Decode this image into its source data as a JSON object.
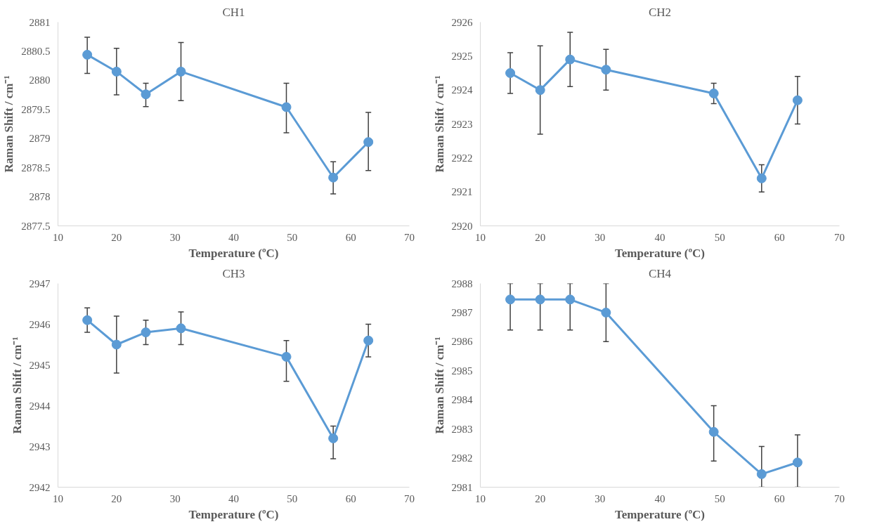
{
  "chart_data": [
    {
      "type": "line",
      "title": "CH1",
      "xlabel": "Temperature (ºC)",
      "ylabel": "Raman Shift / cm⁻¹",
      "x": [
        15,
        20,
        25,
        31,
        49,
        57,
        63
      ],
      "xlim": [
        10,
        70
      ],
      "xticks": [
        10,
        20,
        30,
        40,
        50,
        60,
        70
      ],
      "ylim": [
        2877.5,
        2881
      ],
      "yticks": [
        2877.5,
        2878,
        2878.5,
        2879,
        2879.5,
        2880,
        2880.5,
        2881
      ],
      "marker": "circle",
      "grid": false,
      "series": [
        {
          "color": "#5b9bd5",
          "values": [
            2880.44,
            2880.15,
            2879.76,
            2880.15,
            2879.54,
            2878.33,
            2878.94
          ],
          "errors": [
            [
              2880.12,
              2880.74
            ],
            [
              2879.75,
              2880.55
            ],
            [
              2879.55,
              2879.95
            ],
            [
              2879.65,
              2880.65
            ],
            [
              2879.1,
              2879.95
            ],
            [
              2878.05,
              2878.6
            ],
            [
              2878.45,
              2879.45
            ]
          ]
        }
      ]
    },
    {
      "type": "line",
      "title": "CH2",
      "xlabel": "Temperature (ºC)",
      "ylabel": "Raman Shift / cm⁻¹",
      "x": [
        15,
        20,
        25,
        31,
        49,
        57,
        63
      ],
      "xlim": [
        10,
        70
      ],
      "xticks": [
        10,
        20,
        30,
        40,
        50,
        60,
        70
      ],
      "ylim": [
        2920,
        2926
      ],
      "yticks": [
        2920,
        2921,
        2922,
        2923,
        2924,
        2925,
        2926
      ],
      "marker": "circle",
      "grid": false,
      "series": [
        {
          "color": "#5b9bd5",
          "values": [
            2924.5,
            2924.0,
            2924.9,
            2924.6,
            2923.9,
            2921.4,
            2923.7
          ],
          "errors": [
            [
              2923.9,
              2925.1
            ],
            [
              2922.7,
              2925.3
            ],
            [
              2924.1,
              2925.7
            ],
            [
              2924.0,
              2925.2
            ],
            [
              2923.6,
              2924.2
            ],
            [
              2921.0,
              2921.8
            ],
            [
              2923.0,
              2924.4
            ]
          ]
        }
      ]
    },
    {
      "type": "line",
      "title": "CH3",
      "xlabel": "Temperature (ºC)",
      "ylabel": "Raman Shift / cm⁻¹",
      "x": [
        15,
        20,
        25,
        31,
        49,
        57,
        63
      ],
      "xlim": [
        10,
        70
      ],
      "xticks": [
        10,
        20,
        30,
        40,
        50,
        60,
        70
      ],
      "ylim": [
        2942,
        2947
      ],
      "yticks": [
        2942,
        2943,
        2944,
        2945,
        2946,
        2947
      ],
      "marker": "circle",
      "grid": false,
      "series": [
        {
          "color": "#5b9bd5",
          "values": [
            2946.1,
            2945.5,
            2945.8,
            2945.9,
            2945.2,
            2943.2,
            2945.6
          ],
          "errors": [
            [
              2945.8,
              2946.4
            ],
            [
              2944.8,
              2946.2
            ],
            [
              2945.5,
              2946.1
            ],
            [
              2945.5,
              2946.3
            ],
            [
              2944.6,
              2945.6
            ],
            [
              2942.7,
              2943.5
            ],
            [
              2945.2,
              2946.0
            ]
          ]
        }
      ]
    },
    {
      "type": "line",
      "title": "CH4",
      "xlabel": "Temperature (ºC)",
      "ylabel": "Raman Shift / cm⁻¹",
      "x": [
        15,
        20,
        25,
        31,
        49,
        57,
        63
      ],
      "xlim": [
        10,
        70
      ],
      "xticks": [
        10,
        20,
        30,
        40,
        50,
        60,
        70
      ],
      "ylim": [
        2981,
        2988
      ],
      "yticks": [
        2981,
        2982,
        2983,
        2984,
        2985,
        2986,
        2987,
        2988
      ],
      "marker": "circle",
      "grid": false,
      "series": [
        {
          "color": "#5b9bd5",
          "values": [
            2987.45,
            2987.45,
            2987.45,
            2987.0,
            2982.9,
            2981.45,
            2981.85
          ],
          "errors": [
            [
              2986.4,
              2988
            ],
            [
              2986.4,
              2988
            ],
            [
              2986.4,
              2988
            ],
            [
              2986.0,
              2988
            ],
            [
              2981.9,
              2983.8
            ],
            [
              2981,
              2982.4
            ],
            [
              2981,
              2982.8
            ]
          ]
        }
      ]
    }
  ]
}
